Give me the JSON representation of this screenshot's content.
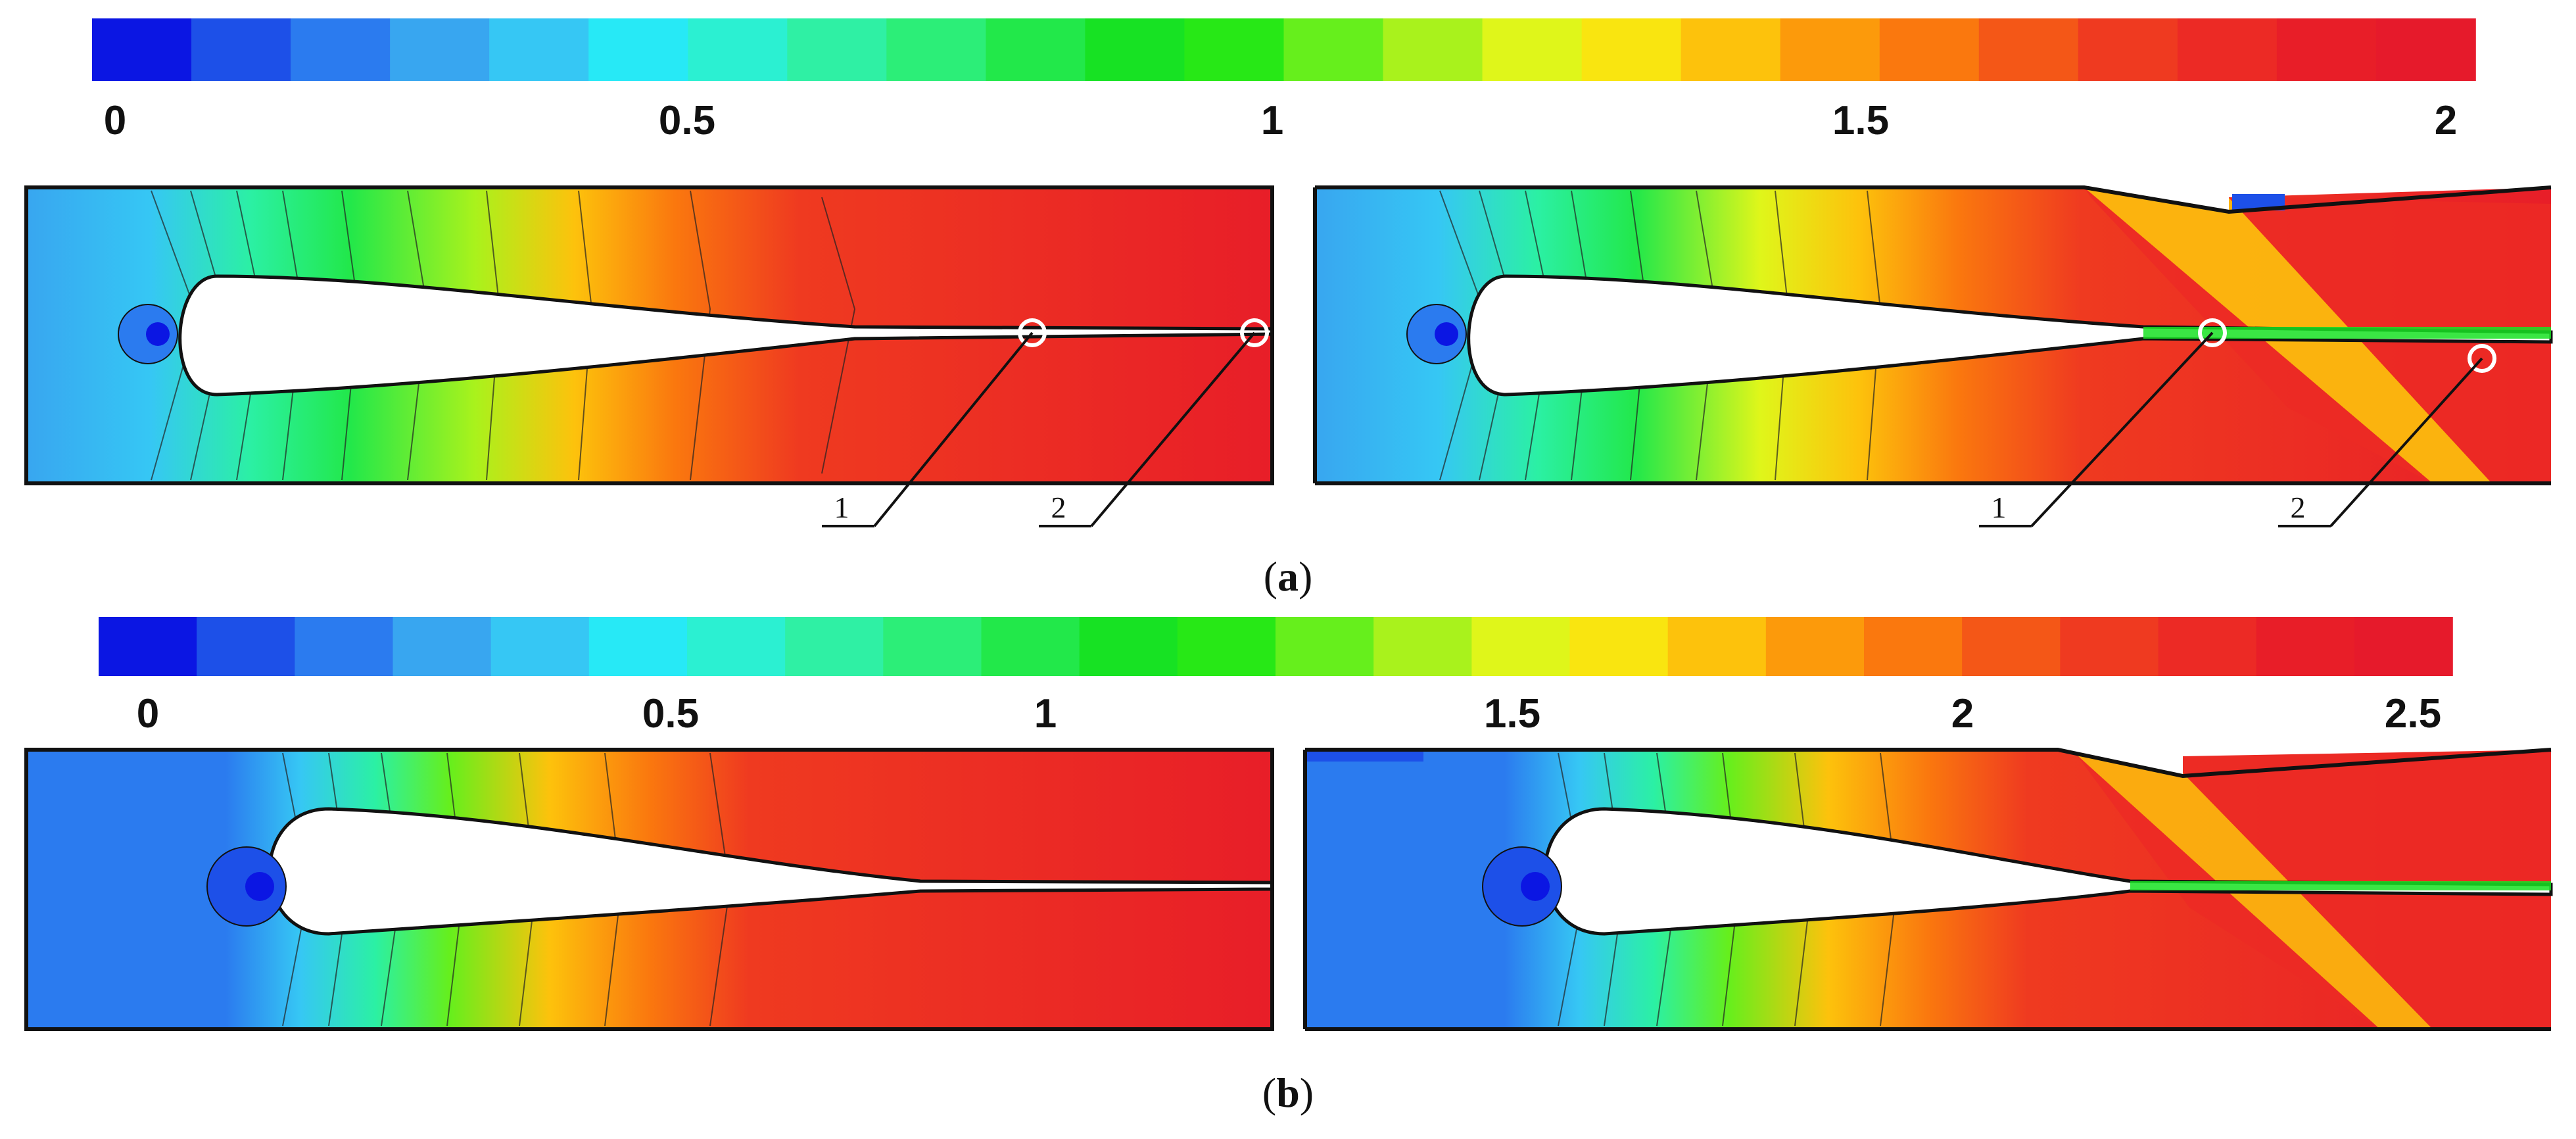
{
  "colormap": [
    "#0b16e3",
    "#1d50e8",
    "#2b7bef",
    "#38a6f0",
    "#36c7f4",
    "#27e9f6",
    "#2bf0d2",
    "#2ff0a4",
    "#2cee78",
    "#22e84a",
    "#17e223",
    "#27e816",
    "#66ef1c",
    "#a9f21c",
    "#dff61a",
    "#f9e510",
    "#fdc20c",
    "#fc9a0b",
    "#fa780e",
    "#f45717",
    "#ef3a20",
    "#ec2a25",
    "#e81e28",
    "#e61a2b"
  ],
  "panel_a": {
    "colorbar_labels": [
      {
        "text": "0"
      },
      {
        "text": "0.5"
      },
      {
        "text": "1"
      },
      {
        "text": "1.5"
      },
      {
        "text": "2"
      }
    ],
    "callout_labels": [
      "1",
      "2",
      "1",
      "2"
    ],
    "caption_letter": "a"
  },
  "panel_b": {
    "colorbar_labels": [
      {
        "text": "0"
      },
      {
        "text": "0.5"
      },
      {
        "text": "1"
      },
      {
        "text": "1.5"
      },
      {
        "text": "2"
      },
      {
        "text": "2.5"
      }
    ],
    "caption_letter": "b"
  }
}
